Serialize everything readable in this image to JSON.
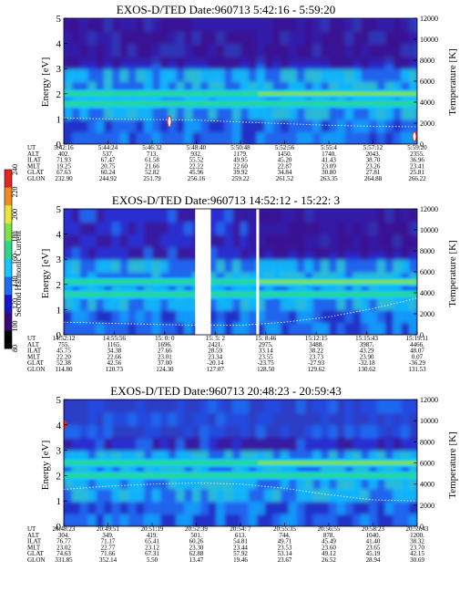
{
  "figure": {
    "colorbar": {
      "label": "Second Harmonic Current",
      "ticks": [
        "80",
        "100",
        "120",
        "140",
        "160",
        "180",
        "200",
        "220",
        "240"
      ],
      "colors": [
        "#000000",
        "#3a0a7a",
        "#1515d0",
        "#1e6cf2",
        "#12c8ff",
        "#2bd98a",
        "#7fe24a",
        "#e8e638",
        "#f08a22",
        "#e52620"
      ]
    },
    "ut_label": "UT",
    "orbit_rows": [
      "ALT",
      "ILAT",
      "MLT",
      "GLAT",
      "GLON"
    ]
  },
  "chart_data": [
    {
      "type": "heatmap",
      "title": "EXOS-D/TED   Date:960713  5:42:16 - 5:59:20",
      "ylabel": "Energy [eV]",
      "ylabel_right": "Temperature [K]",
      "ylim": [
        0,
        5
      ],
      "y_ticks": [
        "0",
        "1",
        "2",
        "3",
        "4",
        "5"
      ],
      "ylim_right": [
        0,
        12000
      ],
      "y_ticks_right": [
        "0",
        "2000",
        "4000",
        "6000",
        "8000",
        "10000",
        "12000"
      ],
      "ut": [
        "5:42:16",
        "5:44:24",
        "5:46:32",
        "5:48:40",
        "5:50:48",
        "5:52:56",
        "5:55:4",
        "5:57:12",
        "5:59:20"
      ],
      "orbit": {
        "ALT": [
          "402.",
          "537.",
          "713.",
          "932.",
          "1179.",
          "1450.",
          "1740.",
          "2043.",
          "2355."
        ],
        "ILAT": [
          "71.93",
          "67.47",
          "61.58",
          "55.52",
          "49.95",
          "45.20",
          "41.43",
          "38.70",
          "36.96"
        ],
        "MLT": [
          "19.25",
          "20.75",
          "21.66",
          "22.22",
          "22.60",
          "22.87",
          "23.09",
          "23.26",
          "23.41"
        ],
        "GLAT": [
          "67.63",
          "60.24",
          "52.82",
          "45.96",
          "39.92",
          "34.84",
          "30.80",
          "27.81",
          "25.81"
        ],
        "GLON": [
          "232.90",
          "244.92",
          "251.79",
          "256.16",
          "259.22",
          "261.52",
          "263.35",
          "264.88",
          "266.22"
        ]
      },
      "bands": [
        {
          "energy": 2.0,
          "level": "high"
        },
        {
          "energy": 1.6,
          "level": "high"
        }
      ],
      "temperature_trace": [
        2500,
        2400,
        2350,
        2300,
        2100,
        1950,
        1800,
        1700,
        1650
      ]
    },
    {
      "type": "heatmap",
      "title": "EXOS-D/TED   Date:960713  14:52:12 - 15:22: 3",
      "ylabel": "Energy [eV]",
      "ylabel_right": "Temperature [K]",
      "ylim": [
        0,
        5
      ],
      "y_ticks": [
        "0",
        "1",
        "2",
        "3",
        "4",
        "5"
      ],
      "ylim_right": [
        0,
        12000
      ],
      "y_ticks_right": [
        "0",
        "2000",
        "4000",
        "6000",
        "8000",
        "10000",
        "12000"
      ],
      "ut": [
        "14:52:12",
        "14:55:56",
        "15: 0: 0",
        "15: 5: 2",
        "15: 8:46",
        "15:12:15",
        "15:15:43",
        "15:19:11"
      ],
      "orbit": {
        "ALT": [
          "755.",
          "1165.",
          "1696.",
          "2421.",
          "2975.",
          "3488.",
          "3987.",
          "4466."
        ],
        "ILAT": [
          "45.75",
          "34.38",
          "27.66",
          "28.59",
          "33.14",
          "38.22",
          "43.29",
          "48.07"
        ],
        "MLT": [
          "22.20",
          "22.66",
          "23.01",
          "23.34",
          "23.55",
          "23.73",
          "23.90",
          "0.07"
        ],
        "GLAT": [
          "52.38",
          "42.56",
          "37.00",
          "-20.14",
          "-23.75",
          "-27.93",
          "-32.18",
          "-36.29"
        ],
        "GLON": [
          "114.80",
          "120.73",
          "124.30",
          "127.07",
          "128.50",
          "129.62",
          "130.62",
          "131.53"
        ]
      },
      "data_gaps": [
        [
          15.055,
          15.077
        ],
        [
          15.141,
          15.145
        ]
      ],
      "temperature_trace": [
        1200,
        1100,
        1000,
        900,
        900,
        1200,
        1700,
        2500,
        3500
      ]
    },
    {
      "type": "heatmap",
      "title": "EXOS-D/TED   Date:960713  20:48:23 - 20:59:43",
      "ylabel": "Energy [eV]",
      "ylabel_right": "Temperature [K]",
      "ylim": [
        0,
        5
      ],
      "y_ticks": [
        "0",
        "1",
        "2",
        "3",
        "4",
        "5"
      ],
      "ylim_right": [
        0,
        12000
      ],
      "y_ticks_right": [
        "0",
        "2000",
        "4000",
        "6000",
        "8000",
        "10000",
        "12000"
      ],
      "ut": [
        "20:48:23",
        "20:49:51",
        "20:51:19",
        "20:52:39",
        "20:54: 7",
        "20:55:35",
        "20:56:55",
        "20:58:23",
        "20:59:43"
      ],
      "orbit": {
        "ALT": [
          "304.",
          "349.",
          "419.",
          "501.",
          "613.",
          "744.",
          "878.",
          "1040.",
          "1200."
        ],
        "ILAT": [
          "76.77",
          "71.17",
          "65.41",
          "60.26",
          "54.81",
          "49.71",
          "45.49",
          "41.40",
          "38.32"
        ],
        "MLT": [
          "23.02",
          "22.77",
          "23.12",
          "23.30",
          "23.44",
          "23.53",
          "23.60",
          "23.65",
          "23.70"
        ],
        "GLAT": [
          "74.63",
          "71.66",
          "67.31",
          "62.88",
          "57.92",
          "53.14",
          "49.12",
          "45.19",
          "42.15"
        ],
        "GLON": [
          "331.85",
          "352.14",
          "5.50",
          "13.47",
          "19.46",
          "23.67",
          "26.52",
          "28.94",
          "30.69"
        ]
      },
      "bands": [
        {
          "energy": 2.5,
          "level": "high"
        },
        {
          "energy": 2.0,
          "level": "mid"
        }
      ],
      "temperature_trace": [
        3500,
        3800,
        4000,
        4100,
        4000,
        3600,
        3000,
        2500,
        2400
      ]
    }
  ]
}
